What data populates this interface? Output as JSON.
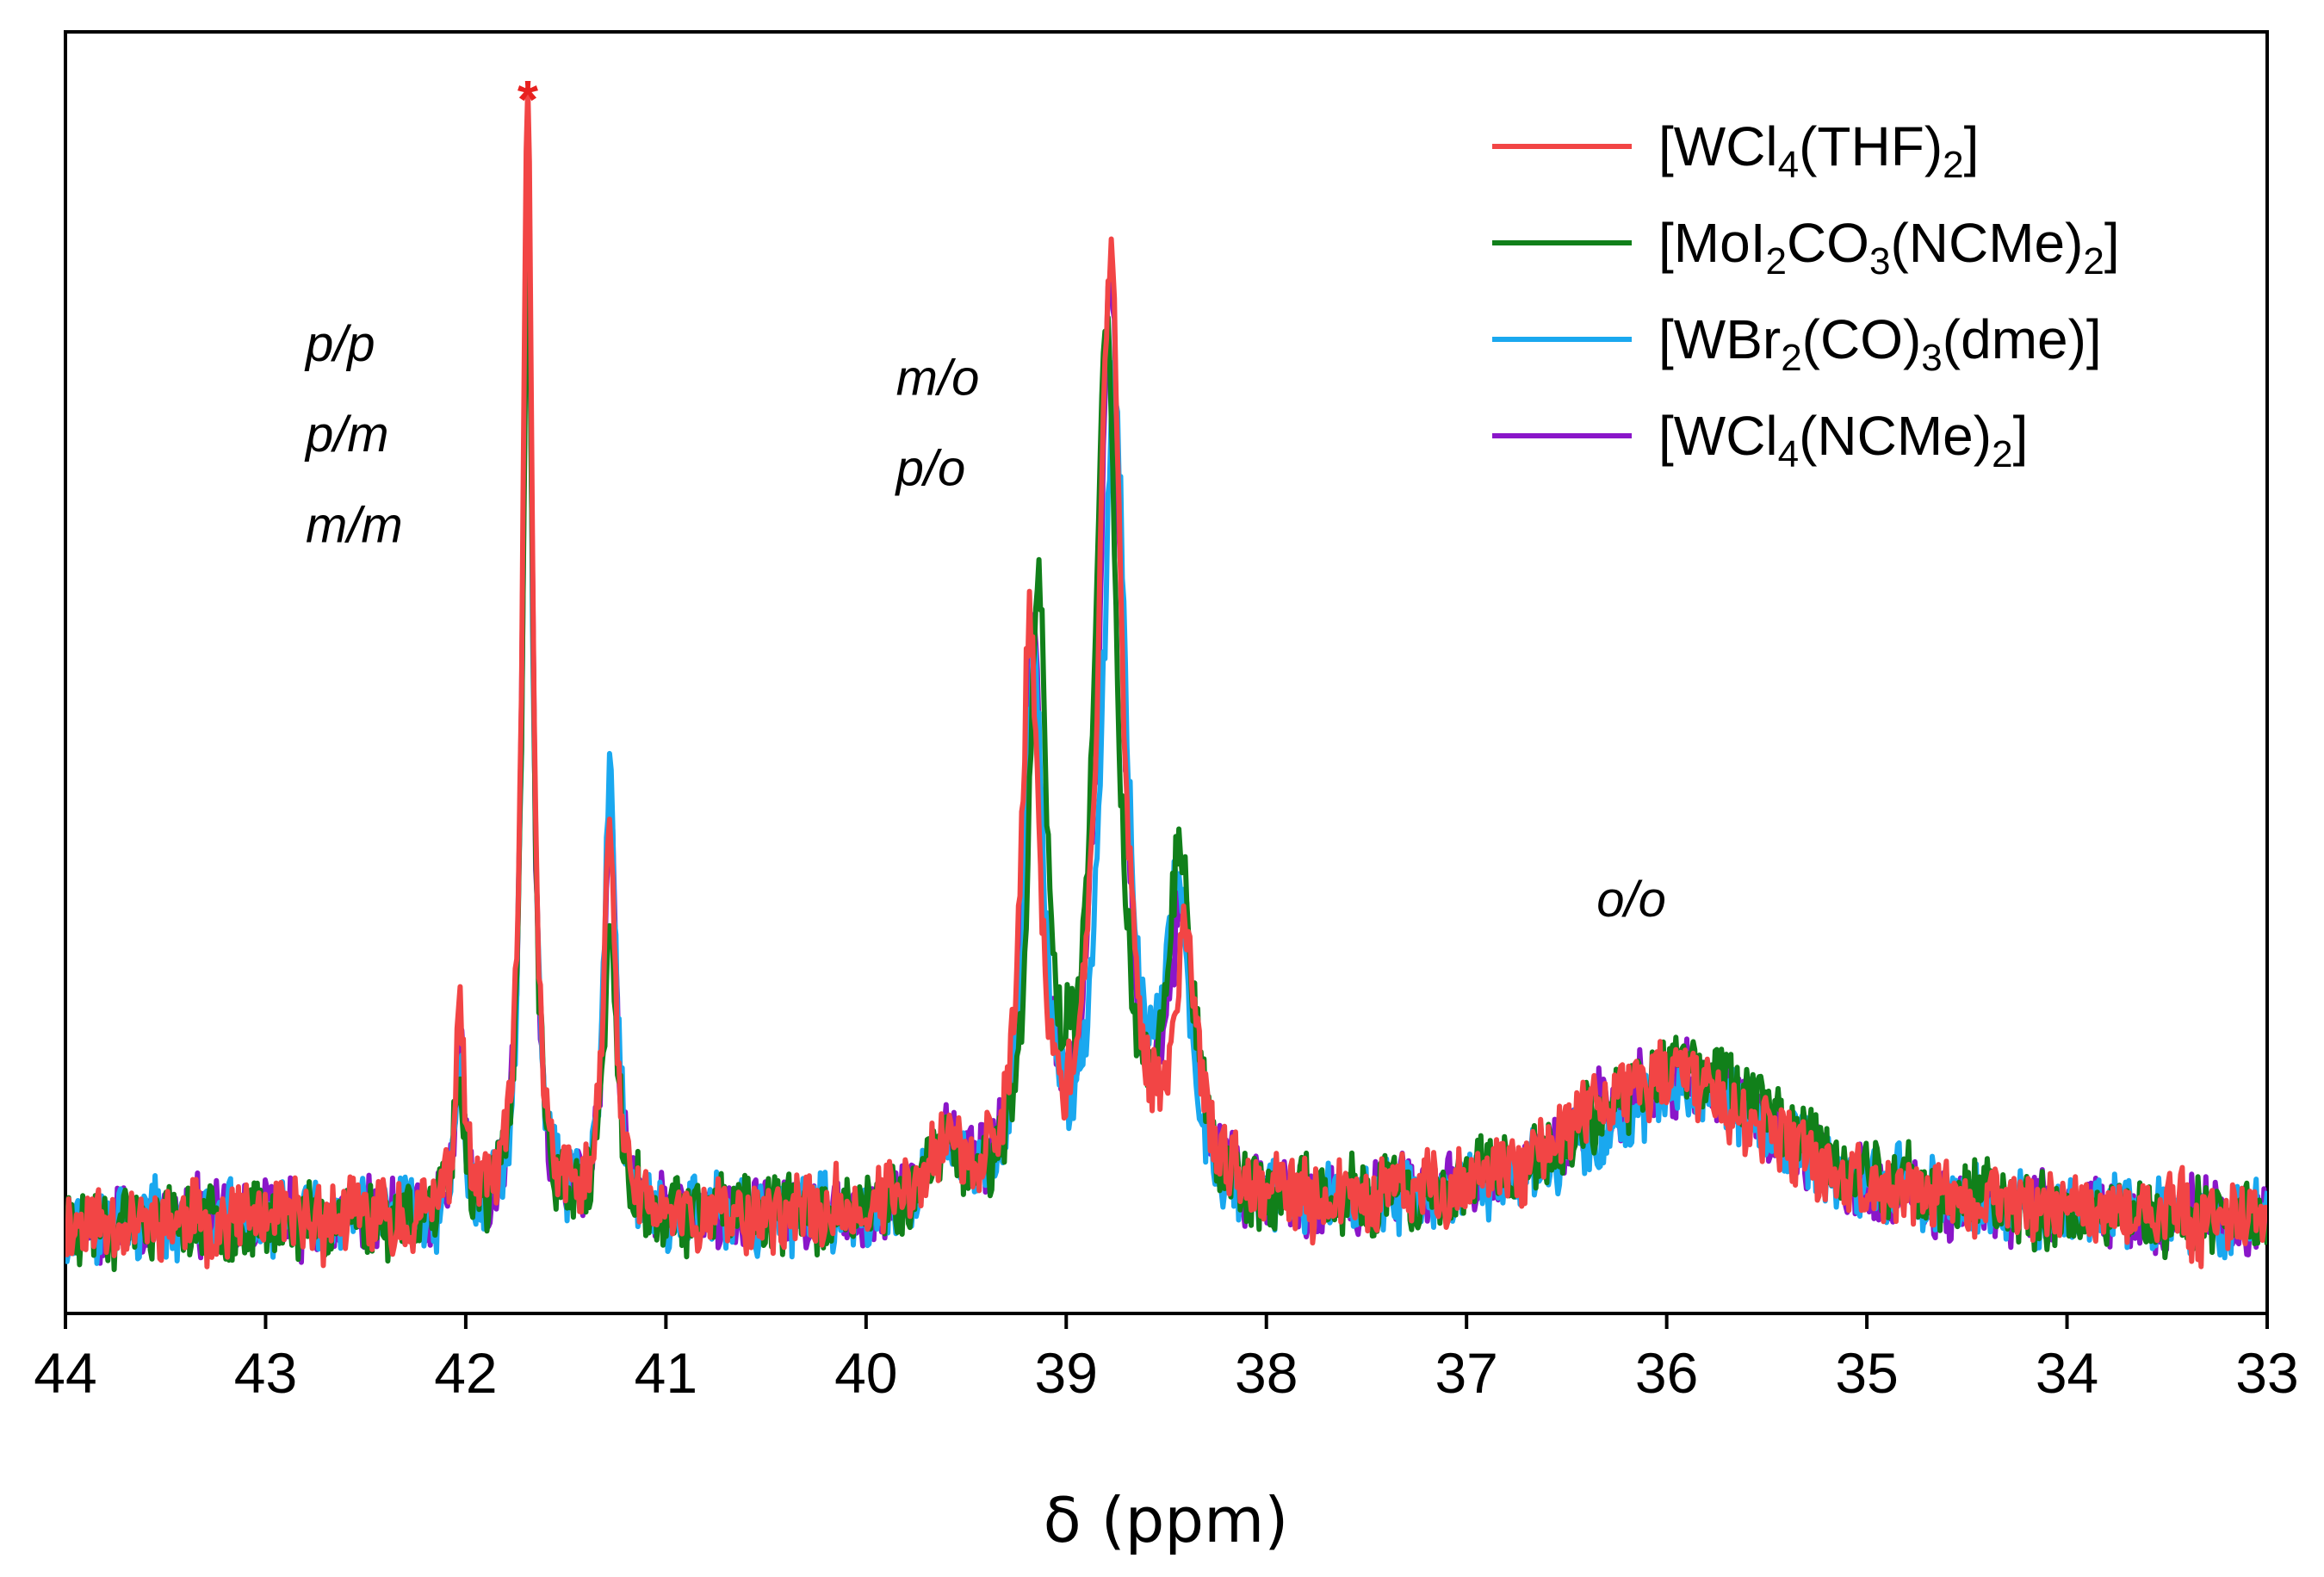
{
  "chart_data": {
    "type": "line",
    "title": "",
    "xlabel": "δ (ppm)",
    "ylabel": "",
    "xlim": [
      44,
      33
    ],
    "ylim": [
      -0.08,
      1.05
    ],
    "x_reversed": true,
    "grid": false,
    "x_ticks": [
      "44",
      "43",
      "42",
      "41",
      "40",
      "39",
      "38",
      "37",
      "36",
      "35",
      "34",
      "33"
    ],
    "legend_position": "top-right",
    "series": [
      {
        "name": "[WCl4(THF)2]",
        "name_parts": [
          [
            "[WCl",
            "n"
          ],
          [
            "4",
            "sub"
          ],
          [
            "(THF)",
            "n"
          ],
          [
            "2",
            "sub"
          ],
          [
            "]",
            "n"
          ]
        ],
        "color": "#f24545",
        "noise_seed": 11,
        "peaks": [
          {
            "center": 42.03,
            "height": 0.17,
            "width": 0.03
          },
          {
            "center": 41.69,
            "height": 0.98,
            "width": 0.03
          },
          {
            "center": 41.28,
            "height": 0.34,
            "width": 0.035
          },
          {
            "center": 39.62,
            "height": 0.06,
            "width": 0.12
          },
          {
            "center": 39.18,
            "height": 0.5,
            "width": 0.055
          },
          {
            "center": 38.78,
            "height": 0.83,
            "width": 0.07
          },
          {
            "center": 38.4,
            "height": 0.22,
            "width": 0.075
          },
          {
            "center": 36.0,
            "height": 0.13,
            "width": 0.6
          }
        ]
      },
      {
        "name": "[MoI2CO3(NCMe)2]",
        "name_parts": [
          [
            "[MoI",
            "n"
          ],
          [
            "2",
            "sub"
          ],
          [
            "CO",
            "n"
          ],
          [
            "3",
            "sub"
          ],
          [
            "(NCMe)",
            "n"
          ],
          [
            "2",
            "sub"
          ],
          [
            "]",
            "n"
          ]
        ],
        "color": "#11801a",
        "noise_seed": 23,
        "peaks": [
          {
            "center": 42.03,
            "height": 0.13,
            "width": 0.03
          },
          {
            "center": 41.69,
            "height": 0.88,
            "width": 0.03
          },
          {
            "center": 41.28,
            "height": 0.27,
            "width": 0.035
          },
          {
            "center": 39.6,
            "height": 0.05,
            "width": 0.12
          },
          {
            "center": 39.14,
            "height": 0.53,
            "width": 0.055
          },
          {
            "center": 38.8,
            "height": 0.76,
            "width": 0.07
          },
          {
            "center": 38.43,
            "height": 0.3,
            "width": 0.075
          },
          {
            "center": 35.9,
            "height": 0.14,
            "width": 0.6
          }
        ]
      },
      {
        "name": "[WBr2(CO)3(dme)]",
        "name_parts": [
          [
            "[WBr",
            "n"
          ],
          [
            "2",
            "sub"
          ],
          [
            "(CO)",
            "n"
          ],
          [
            "3",
            "sub"
          ],
          [
            "(dme)]",
            "n"
          ]
        ],
        "color": "#1aa8ef",
        "noise_seed": 37,
        "peaks": [
          {
            "center": 42.03,
            "height": 0.14,
            "width": 0.03
          },
          {
            "center": 41.69,
            "height": 0.9,
            "width": 0.03
          },
          {
            "center": 41.28,
            "height": 0.38,
            "width": 0.035
          },
          {
            "center": 39.6,
            "height": 0.05,
            "width": 0.12
          },
          {
            "center": 39.16,
            "height": 0.48,
            "width": 0.055
          },
          {
            "center": 38.76,
            "height": 0.72,
            "width": 0.07
          },
          {
            "center": 38.45,
            "height": 0.28,
            "width": 0.075
          },
          {
            "center": 35.9,
            "height": 0.12,
            "width": 0.6
          }
        ]
      },
      {
        "name": "[WCl4(NCMe)2]",
        "name_parts": [
          [
            "[WCl",
            "n"
          ],
          [
            "4",
            "sub"
          ],
          [
            "(NCMe)",
            "n"
          ],
          [
            "2",
            "sub"
          ],
          [
            "]",
            "n"
          ]
        ],
        "color": "#8a16c9",
        "noise_seed": 53,
        "peaks": [
          {
            "center": 42.03,
            "height": 0.15,
            "width": 0.03
          },
          {
            "center": 41.69,
            "height": 0.92,
            "width": 0.03
          },
          {
            "center": 41.28,
            "height": 0.37,
            "width": 0.035
          },
          {
            "center": 39.6,
            "height": 0.06,
            "width": 0.12
          },
          {
            "center": 39.17,
            "height": 0.5,
            "width": 0.055
          },
          {
            "center": 38.78,
            "height": 0.8,
            "width": 0.07
          },
          {
            "center": 38.42,
            "height": 0.25,
            "width": 0.075
          },
          {
            "center": 35.95,
            "height": 0.13,
            "width": 0.6
          }
        ]
      }
    ],
    "annotations": [
      {
        "text": "*",
        "x": 41.69,
        "y": 1.0,
        "color": "#e8211f"
      },
      {
        "text": "p/p",
        "x": 42.8,
        "y": 0.76
      },
      {
        "text": "p/m",
        "x": 42.8,
        "y": 0.68
      },
      {
        "text": "m/m",
        "x": 42.8,
        "y": 0.6
      },
      {
        "text": "m/o",
        "x": 39.85,
        "y": 0.73
      },
      {
        "text": "p/o",
        "x": 39.85,
        "y": 0.65
      },
      {
        "text": "o/o",
        "x": 36.35,
        "y": 0.27
      }
    ]
  }
}
